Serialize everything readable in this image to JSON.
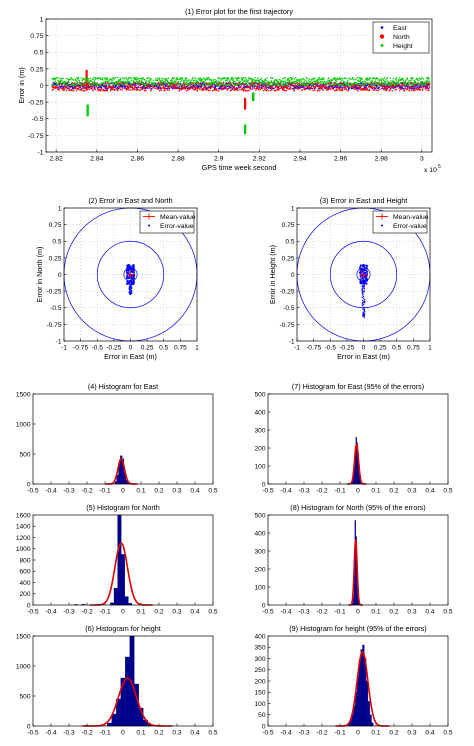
{
  "colors": {
    "blue": "#0000ff",
    "red": "#ff0000",
    "green": "#00cc00",
    "bar": "#00008b",
    "fit": "#e00000",
    "grid": "#bbbbbb"
  },
  "chart_data": [
    {
      "id": "p1",
      "type": "scatter",
      "title": "(1) Error plot for the first trajectory",
      "xlabel": "GPS time week second",
      "ylabel": "Error in (m)",
      "x_multiplier": "x 10",
      "x_multiplier_exp": "5",
      "xlim": [
        2.815,
        3.005
      ],
      "ylim": [
        -1,
        1
      ],
      "xticks": [
        "2.82",
        "2.84",
        "2.86",
        "2.88",
        "2.9",
        "2.92",
        "2.94",
        "2.96",
        "2.98",
        "3"
      ],
      "yticks": [
        "1",
        "0.75",
        "0.5",
        "0.25",
        "0",
        "-0.25",
        "-0.5",
        "-0.75",
        "-1"
      ],
      "legend": [
        "East",
        "North",
        "Height"
      ],
      "legend_position": "top-right",
      "grid": true,
      "series": [
        {
          "name": "East",
          "color": "blue",
          "band": [
            -0.05,
            0.04
          ]
        },
        {
          "name": "North",
          "color": "red",
          "band": [
            -0.08,
            0.05
          ],
          "spikes": [
            {
              "x": 2.835,
              "ymin": -0.05,
              "ymax": 0.22
            },
            {
              "x": 2.913,
              "ymin": -0.35,
              "ymax": -0.2
            }
          ]
        },
        {
          "name": "Height",
          "color": "green",
          "band": [
            0.0,
            0.12
          ],
          "spikes": [
            {
              "x": 2.8355,
              "ymin": -0.45,
              "ymax": -0.3
            },
            {
              "x": 2.913,
              "ymin": -0.72,
              "ymax": -0.6
            },
            {
              "x": 2.917,
              "ymin": -0.22,
              "ymax": -0.12
            }
          ]
        }
      ]
    },
    {
      "id": "p2",
      "type": "scatter",
      "title": "(2) Error in East and North",
      "xlabel": "Error in East (m)",
      "ylabel": "Error in North (m)",
      "xlim": [
        -1,
        1
      ],
      "ylim": [
        -1,
        1
      ],
      "xticks": [
        "-1",
        "-0.75",
        "-0.5",
        "-0.25",
        "0",
        "0.25",
        "0.5",
        "0.75",
        "1"
      ],
      "yticks": [
        "1",
        "0.75",
        "0.5",
        "0.25",
        "0",
        "-0.25",
        "-0.5",
        "-0.75",
        "-1"
      ],
      "legend": [
        "Mean-value",
        "Error-value"
      ],
      "legend_position": "top-right",
      "grid": true,
      "circles_radius": [
        0.1,
        0.5,
        1.0
      ],
      "mean": [
        0.0,
        0.0
      ],
      "cloud": {
        "x": [
          -0.06,
          0.06
        ],
        "y": [
          -0.3,
          0.15
        ]
      }
    },
    {
      "id": "p3",
      "type": "scatter",
      "title": "(3) Error in East and Height",
      "xlabel": "Error in East (m)",
      "ylabel": "Error in Height (m)",
      "xlim": [
        -1,
        1
      ],
      "ylim": [
        -1,
        1
      ],
      "xticks": [
        "-1",
        "-0.75",
        "-0.5",
        "-0.25",
        "0",
        "0.25",
        "0.5",
        "0.75",
        "1"
      ],
      "yticks": [
        "1",
        "0.75",
        "0.5",
        "0.25",
        "0",
        "-0.25",
        "-0.5",
        "-0.75",
        "-1"
      ],
      "legend": [
        "Mean-value",
        "Error-value"
      ],
      "legend_position": "top-right",
      "grid": true,
      "circles_radius": [
        0.1,
        0.5,
        1.0
      ],
      "mean": [
        0.0,
        0.0
      ],
      "cloud": {
        "x": [
          -0.06,
          0.06
        ],
        "y": [
          -0.65,
          0.15
        ]
      }
    },
    {
      "id": "p4",
      "type": "bar",
      "title": "(4) Histogram for East",
      "xlim": [
        -0.5,
        0.5
      ],
      "ylim": [
        0,
        1500
      ],
      "xticks": [
        "-0.5",
        "-0.4",
        "-0.3",
        "-0.2",
        "-0.1",
        "0",
        "0.1",
        "0.2",
        "0.3",
        "0.4",
        "0.5"
      ],
      "yticks": [
        "1500",
        "1000",
        "500",
        "0"
      ],
      "bin_width": 0.01,
      "bins": [
        {
          "x": -0.04,
          "v": 40
        },
        {
          "x": -0.03,
          "v": 150
        },
        {
          "x": -0.02,
          "v": 350
        },
        {
          "x": -0.01,
          "v": 470
        },
        {
          "x": 0.0,
          "v": 420
        },
        {
          "x": 0.01,
          "v": 200
        },
        {
          "x": 0.02,
          "v": 60
        },
        {
          "x": 0.03,
          "v": 15
        }
      ],
      "fit": {
        "mu": -0.01,
        "sigma": 0.018,
        "peak": 420
      }
    },
    {
      "id": "p7",
      "type": "bar",
      "title": "(7) Histogram for East (95% of the errors)",
      "xlim": [
        -0.5,
        0.5
      ],
      "ylim": [
        0,
        500
      ],
      "xticks": [
        "-0.5",
        "-0.4",
        "-0.3",
        "-0.2",
        "-0.1",
        "0",
        "0.1",
        "0.2",
        "0.3",
        "0.4",
        "0.5"
      ],
      "yticks": [
        "500",
        "400",
        "300",
        "200",
        "100",
        "0"
      ],
      "bin_width": 0.005,
      "bins": [
        {
          "x": -0.035,
          "v": 5
        },
        {
          "x": -0.03,
          "v": 15
        },
        {
          "x": -0.025,
          "v": 40
        },
        {
          "x": -0.02,
          "v": 100
        },
        {
          "x": -0.015,
          "v": 190
        },
        {
          "x": -0.01,
          "v": 260
        },
        {
          "x": -0.005,
          "v": 230
        },
        {
          "x": 0.0,
          "v": 180
        },
        {
          "x": 0.005,
          "v": 120
        },
        {
          "x": 0.01,
          "v": 60
        },
        {
          "x": 0.015,
          "v": 25
        },
        {
          "x": 0.02,
          "v": 8
        }
      ],
      "fit": {
        "mu": -0.008,
        "sigma": 0.011,
        "peak": 220
      }
    },
    {
      "id": "p5",
      "type": "bar",
      "title": "(5) Histogram for North",
      "xlim": [
        -0.5,
        0.5
      ],
      "ylim": [
        0,
        1600
      ],
      "xticks": [
        "-0.5",
        "-0.4",
        "-0.3",
        "-0.2",
        "-0.1",
        "0",
        "0.1",
        "0.2",
        "0.3",
        "0.4",
        "0.5"
      ],
      "yticks": [
        "1600",
        "1400",
        "1200",
        "1000",
        "800",
        "600",
        "400",
        "200",
        "0"
      ],
      "bin_width": 0.02,
      "bins": [
        {
          "x": -0.06,
          "v": 40
        },
        {
          "x": -0.04,
          "v": 300
        },
        {
          "x": -0.02,
          "v": 1600
        },
        {
          "x": 0.0,
          "v": 900
        },
        {
          "x": 0.02,
          "v": 150
        },
        {
          "x": 0.04,
          "v": 30
        },
        {
          "x": -0.26,
          "v": 10
        },
        {
          "x": -0.22,
          "v": 12
        },
        {
          "x": 0.1,
          "v": 8
        }
      ],
      "fit": {
        "mu": -0.01,
        "sigma": 0.035,
        "peak": 1100
      }
    },
    {
      "id": "p8",
      "type": "bar",
      "title": "(8) Histogram for North (95% of the errors)",
      "xlim": [
        -0.5,
        0.5
      ],
      "ylim": [
        0,
        500
      ],
      "xticks": [
        "-0.5",
        "-0.4",
        "-0.3",
        "-0.2",
        "-0.1",
        "0",
        "0.1",
        "0.2",
        "0.3",
        "0.4",
        "0.5"
      ],
      "yticks": [
        "500",
        "400",
        "300",
        "200",
        "100",
        "0"
      ],
      "bin_width": 0.005,
      "bins": [
        {
          "x": -0.03,
          "v": 10
        },
        {
          "x": -0.025,
          "v": 40
        },
        {
          "x": -0.02,
          "v": 160
        },
        {
          "x": -0.015,
          "v": 470
        },
        {
          "x": -0.01,
          "v": 380
        },
        {
          "x": -0.005,
          "v": 200
        },
        {
          "x": 0.0,
          "v": 80
        },
        {
          "x": 0.005,
          "v": 25
        },
        {
          "x": 0.01,
          "v": 8
        }
      ],
      "fit": {
        "mu": -0.013,
        "sigma": 0.008,
        "peak": 360
      }
    },
    {
      "id": "p6",
      "type": "bar",
      "title": "(6) Histogram for height",
      "xlim": [
        -0.5,
        0.5
      ],
      "ylim": [
        0,
        1500
      ],
      "xticks": [
        "-0.5",
        "-0.4",
        "-0.3",
        "-0.2",
        "-0.1",
        "0",
        "0.1",
        "0.2",
        "0.3",
        "0.4",
        "0.5"
      ],
      "yticks": [
        "1500",
        "1000",
        "500",
        "0"
      ],
      "bin_width": 0.025,
      "bins": [
        {
          "x": -0.075,
          "v": 50
        },
        {
          "x": -0.05,
          "v": 200
        },
        {
          "x": -0.025,
          "v": 450
        },
        {
          "x": 0.0,
          "v": 800
        },
        {
          "x": 0.025,
          "v": 1150
        },
        {
          "x": 0.05,
          "v": 1600
        },
        {
          "x": 0.075,
          "v": 700
        },
        {
          "x": 0.1,
          "v": 300
        },
        {
          "x": 0.125,
          "v": 100
        },
        {
          "x": 0.15,
          "v": 30
        },
        {
          "x": -0.2,
          "v": 10
        }
      ],
      "fit": {
        "mu": 0.025,
        "sigma": 0.05,
        "peak": 800
      }
    },
    {
      "id": "p9",
      "type": "bar",
      "title": "(9) Histogram for height (95% of the errors)",
      "xlim": [
        -0.5,
        0.5
      ],
      "ylim": [
        0,
        400
      ],
      "xticks": [
        "-0.5",
        "-0.4",
        "-0.3",
        "-0.2",
        "-0.1",
        "0",
        "0.1",
        "0.2",
        "0.3",
        "0.4",
        "0.5"
      ],
      "yticks": [
        "400",
        "350",
        "300",
        "250",
        "200",
        "150",
        "100",
        "50",
        "0"
      ],
      "bin_width": 0.01,
      "bins": [
        {
          "x": -0.05,
          "v": 10
        },
        {
          "x": -0.04,
          "v": 25
        },
        {
          "x": -0.03,
          "v": 50
        },
        {
          "x": -0.02,
          "v": 90
        },
        {
          "x": -0.01,
          "v": 150
        },
        {
          "x": 0.0,
          "v": 220
        },
        {
          "x": 0.01,
          "v": 290
        },
        {
          "x": 0.02,
          "v": 340
        },
        {
          "x": 0.03,
          "v": 360
        },
        {
          "x": 0.04,
          "v": 300
        },
        {
          "x": 0.05,
          "v": 200
        },
        {
          "x": 0.06,
          "v": 110
        },
        {
          "x": 0.07,
          "v": 50
        },
        {
          "x": 0.08,
          "v": 15
        }
      ],
      "fit": {
        "mu": 0.025,
        "sigma": 0.03,
        "peak": 330
      }
    }
  ]
}
